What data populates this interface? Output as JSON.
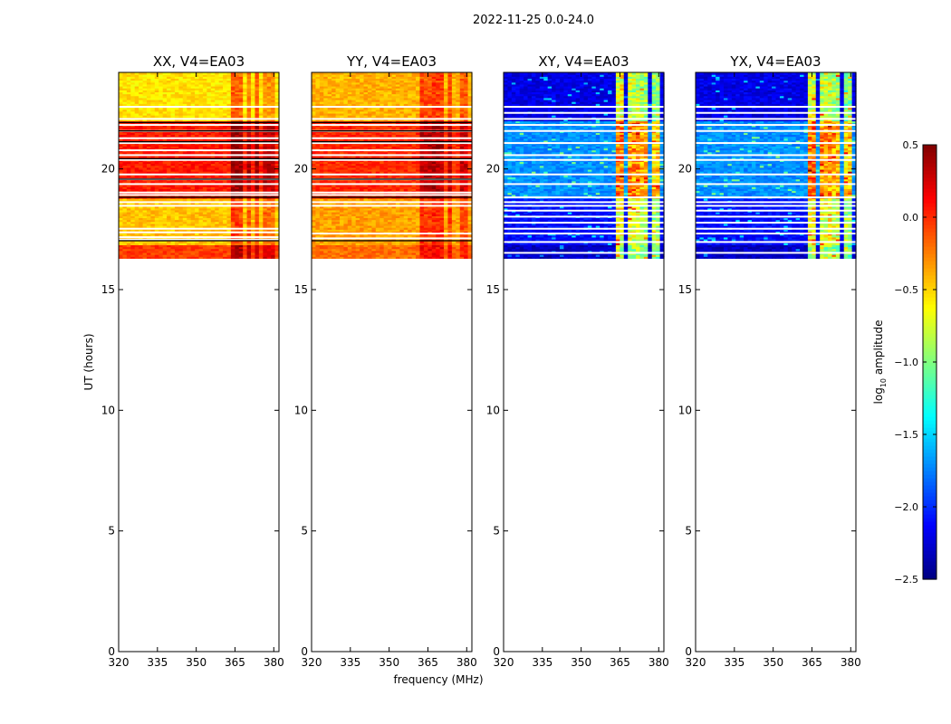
{
  "chart_data": {
    "type": "heatmap",
    "suptitle": "2022-11-25 0.0-24.0",
    "xlabel": "frequency (MHz)",
    "ylabel": "UT (hours)",
    "xlim": [
      320,
      382
    ],
    "ylim": [
      0,
      24
    ],
    "xticks": [
      320,
      335,
      350,
      365,
      380
    ],
    "yticks": [
      0,
      5,
      10,
      15,
      20
    ],
    "data_time_range_hours": [
      16.3,
      24
    ],
    "panels": [
      {
        "title": "XX, V4=EA03",
        "base_level": -0.45,
        "bands": [
          {
            "t0": 16.3,
            "t1": 16.9,
            "level": -0.05
          },
          {
            "t0": 16.9,
            "t1": 18.8,
            "level": -0.45
          },
          {
            "t0": 18.8,
            "t1": 22.0,
            "level": 0.05
          },
          {
            "t0": 22.0,
            "t1": 24.0,
            "level": -0.55
          }
        ],
        "gaps": [
          17.05,
          17.15,
          17.35,
          17.5,
          18.45,
          18.6,
          18.9,
          19.0,
          19.35,
          19.55,
          19.75,
          20.35,
          20.55,
          20.75,
          21.05,
          21.25,
          21.55,
          21.8,
          22.05,
          22.55
        ],
        "bright_columns": [
          {
            "f0": 363,
            "f1": 368,
            "delta": 0.4
          },
          {
            "f0": 369,
            "f1": 371,
            "delta": 0.3
          },
          {
            "f0": 373,
            "f1": 375,
            "delta": 0.35
          },
          {
            "f0": 376,
            "f1": 380,
            "delta": 0.25
          }
        ]
      },
      {
        "title": "YY, V4=EA03",
        "base_level": -0.4,
        "bands": [
          {
            "t0": 16.3,
            "t1": 16.9,
            "level": -0.2
          },
          {
            "t0": 16.9,
            "t1": 18.8,
            "level": -0.35
          },
          {
            "t0": 18.8,
            "t1": 22.0,
            "level": 0.0
          },
          {
            "t0": 22.0,
            "t1": 24.0,
            "level": -0.4
          }
        ],
        "gaps": [
          17.1,
          17.3,
          18.45,
          18.6,
          18.9,
          19.0,
          19.35,
          19.55,
          19.75,
          20.35,
          20.55,
          20.75,
          21.05,
          21.25,
          21.55,
          21.8,
          22.05,
          22.55
        ],
        "bright_columns": [
          {
            "f0": 362,
            "f1": 366,
            "delta": 0.3
          },
          {
            "f0": 367,
            "f1": 371,
            "delta": 0.35
          },
          {
            "f0": 372,
            "f1": 375,
            "delta": 0.3
          },
          {
            "f0": 377,
            "f1": 380,
            "delta": 0.25
          }
        ]
      },
      {
        "title": "XY, V4=EA03",
        "base_level": -2.0,
        "bands": [
          {
            "t0": 16.3,
            "t1": 16.9,
            "level": -2.3
          },
          {
            "t0": 16.9,
            "t1": 18.8,
            "level": -2.1
          },
          {
            "t0": 18.8,
            "t1": 22.0,
            "level": -1.7
          },
          {
            "t0": 22.0,
            "t1": 24.0,
            "level": -2.2
          }
        ],
        "gaps": [
          16.5,
          16.95,
          17.3,
          17.5,
          17.75,
          18.0,
          18.25,
          18.45,
          18.6,
          18.8,
          19.35,
          19.75,
          20.35,
          20.55,
          21.05,
          21.55,
          21.8,
          22.05,
          22.3,
          22.55
        ],
        "bright_columns": [
          {
            "f0": 363,
            "f1": 367,
            "delta": 1.5
          },
          {
            "f0": 368,
            "f1": 372,
            "delta": 1.4
          },
          {
            "f0": 373,
            "f1": 376,
            "delta": 1.3
          },
          {
            "f0": 377,
            "f1": 380,
            "delta": 1.2
          }
        ]
      },
      {
        "title": "YX, V4=EA03",
        "base_level": -2.0,
        "bands": [
          {
            "t0": 16.3,
            "t1": 16.9,
            "level": -2.3
          },
          {
            "t0": 16.9,
            "t1": 18.8,
            "level": -2.1
          },
          {
            "t0": 18.8,
            "t1": 22.0,
            "level": -1.7
          },
          {
            "t0": 22.0,
            "t1": 24.0,
            "level": -2.2
          }
        ],
        "gaps": [
          16.5,
          16.95,
          17.3,
          17.5,
          17.75,
          18.0,
          18.25,
          18.45,
          18.6,
          18.8,
          19.35,
          19.75,
          20.35,
          20.55,
          21.05,
          21.55,
          21.8,
          22.05,
          22.3,
          22.55
        ],
        "bright_columns": [
          {
            "f0": 363,
            "f1": 367,
            "delta": 1.5
          },
          {
            "f0": 368,
            "f1": 372,
            "delta": 1.4
          },
          {
            "f0": 373,
            "f1": 376,
            "delta": 1.3
          },
          {
            "f0": 377,
            "f1": 380,
            "delta": 1.2
          }
        ]
      }
    ],
    "colorbar": {
      "label": "log10 amplitude",
      "label_main": "log",
      "label_sub": "10",
      "label_rest": " amplitude",
      "range": [
        -2.5,
        0.5
      ],
      "ticks": [
        -2.5,
        -2.0,
        -1.5,
        -1.0,
        -0.5,
        0.0,
        0.5
      ],
      "tick_labels": [
        "−2.5",
        "−2.0",
        "−1.5",
        "−1.0",
        "−0.5",
        "0.0",
        "0.5"
      ],
      "colormap": "jet"
    }
  }
}
